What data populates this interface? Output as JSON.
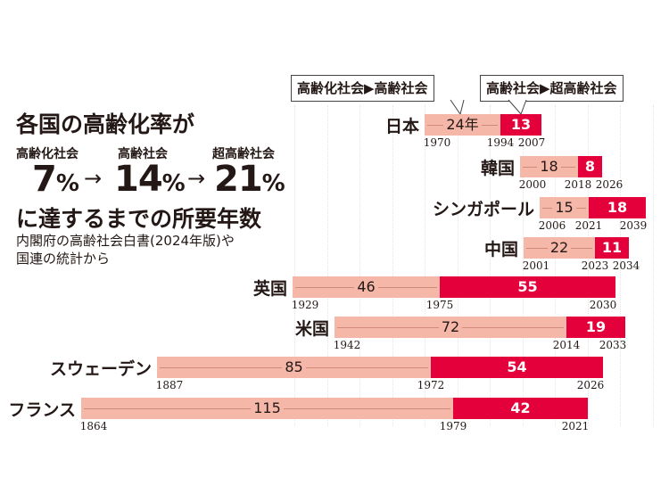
{
  "callouts": [
    "高齢化社会▶高齢社会",
    "高齢社会▶超高齢社会"
  ],
  "heading": {
    "line1": "各国の高齢化率が",
    "labels": [
      "高齢化社会",
      "高齢社会",
      "超高齢社会"
    ],
    "values": [
      "7",
      "14",
      "21"
    ],
    "unit": "%",
    "arrow": "→",
    "line2": "に達するまでの所要年数",
    "note1": "内閣府の高齢社会白書(2024年版)や",
    "note2": "国連の統計から"
  },
  "colors": {
    "aging_to_aged": "#f5b7a8",
    "aged_to_superaged": "#e4003a"
  },
  "chart_data": {
    "type": "bar",
    "title": "各国の高齢化率が 7%→14%→21% に達するまでの所要年数",
    "series": [
      {
        "name": "高齢化社会▶高齢社会"
      },
      {
        "name": "高齢社会▶超高齢社会"
      }
    ],
    "rows": [
      {
        "country": "日本",
        "y7": "1970",
        "y14": "1994",
        "y21": "2007",
        "d1": "24年",
        "d2": "13"
      },
      {
        "country": "韓国",
        "y7": "2000",
        "y14": "2018",
        "y21": "2026",
        "d1": "18",
        "d2": "8"
      },
      {
        "country": "シンガポール",
        "y7": "2006",
        "y14": "2021",
        "y21": "2039",
        "d1": "15",
        "d2": "18"
      },
      {
        "country": "中国",
        "y7": "2001",
        "y14": "2023",
        "y21": "2034",
        "d1": "22",
        "d2": "11"
      },
      {
        "country": "英国",
        "y7": "1929",
        "y14": "1975",
        "y21": "2030",
        "d1": "46",
        "d2": "55"
      },
      {
        "country": "米国",
        "y7": "1942",
        "y14": "2014",
        "y21": "2033",
        "d1": "72",
        "d2": "19"
      },
      {
        "country": "スウェーデン",
        "y7": "1887",
        "y14": "1972",
        "y21": "2026",
        "d1": "85",
        "d2": "54"
      },
      {
        "country": "フランス",
        "y7": "1864",
        "y14": "1979",
        "y21": "2021",
        "d1": "115",
        "d2": "42"
      }
    ]
  }
}
